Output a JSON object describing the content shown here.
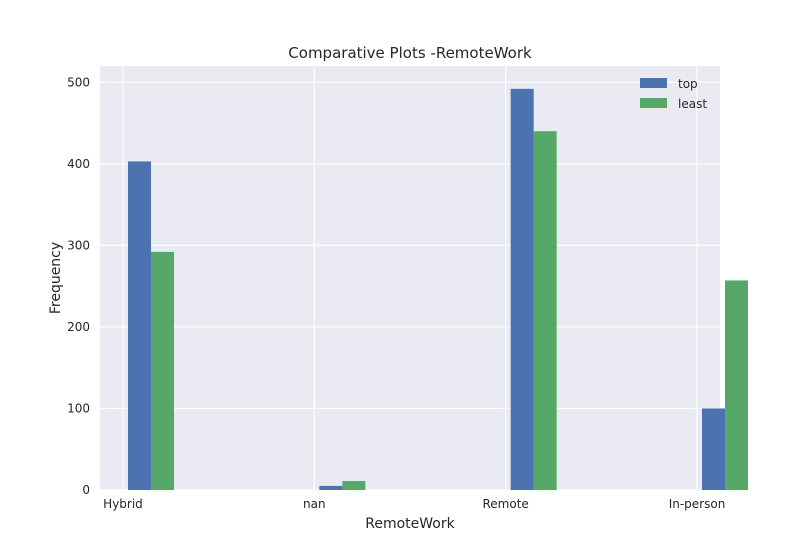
{
  "chart_data": {
    "type": "bar",
    "title": "Comparative Plots -RemoteWork",
    "xlabel": "RemoteWork",
    "ylabel": "Frequency",
    "categories": [
      "Hybrid",
      "nan",
      "Remote",
      "In-person"
    ],
    "series": [
      {
        "name": "top",
        "values": [
          403,
          5,
          492,
          100
        ],
        "color": "#4c72b0"
      },
      {
        "name": "least",
        "values": [
          292,
          11,
          440,
          257
        ],
        "color": "#55a868"
      }
    ],
    "ylim": [
      0,
      520
    ],
    "yticks": [
      0,
      100,
      200,
      300,
      400,
      500
    ],
    "grid": true,
    "legend": "top-right",
    "background_color": "#eaeaf2"
  }
}
